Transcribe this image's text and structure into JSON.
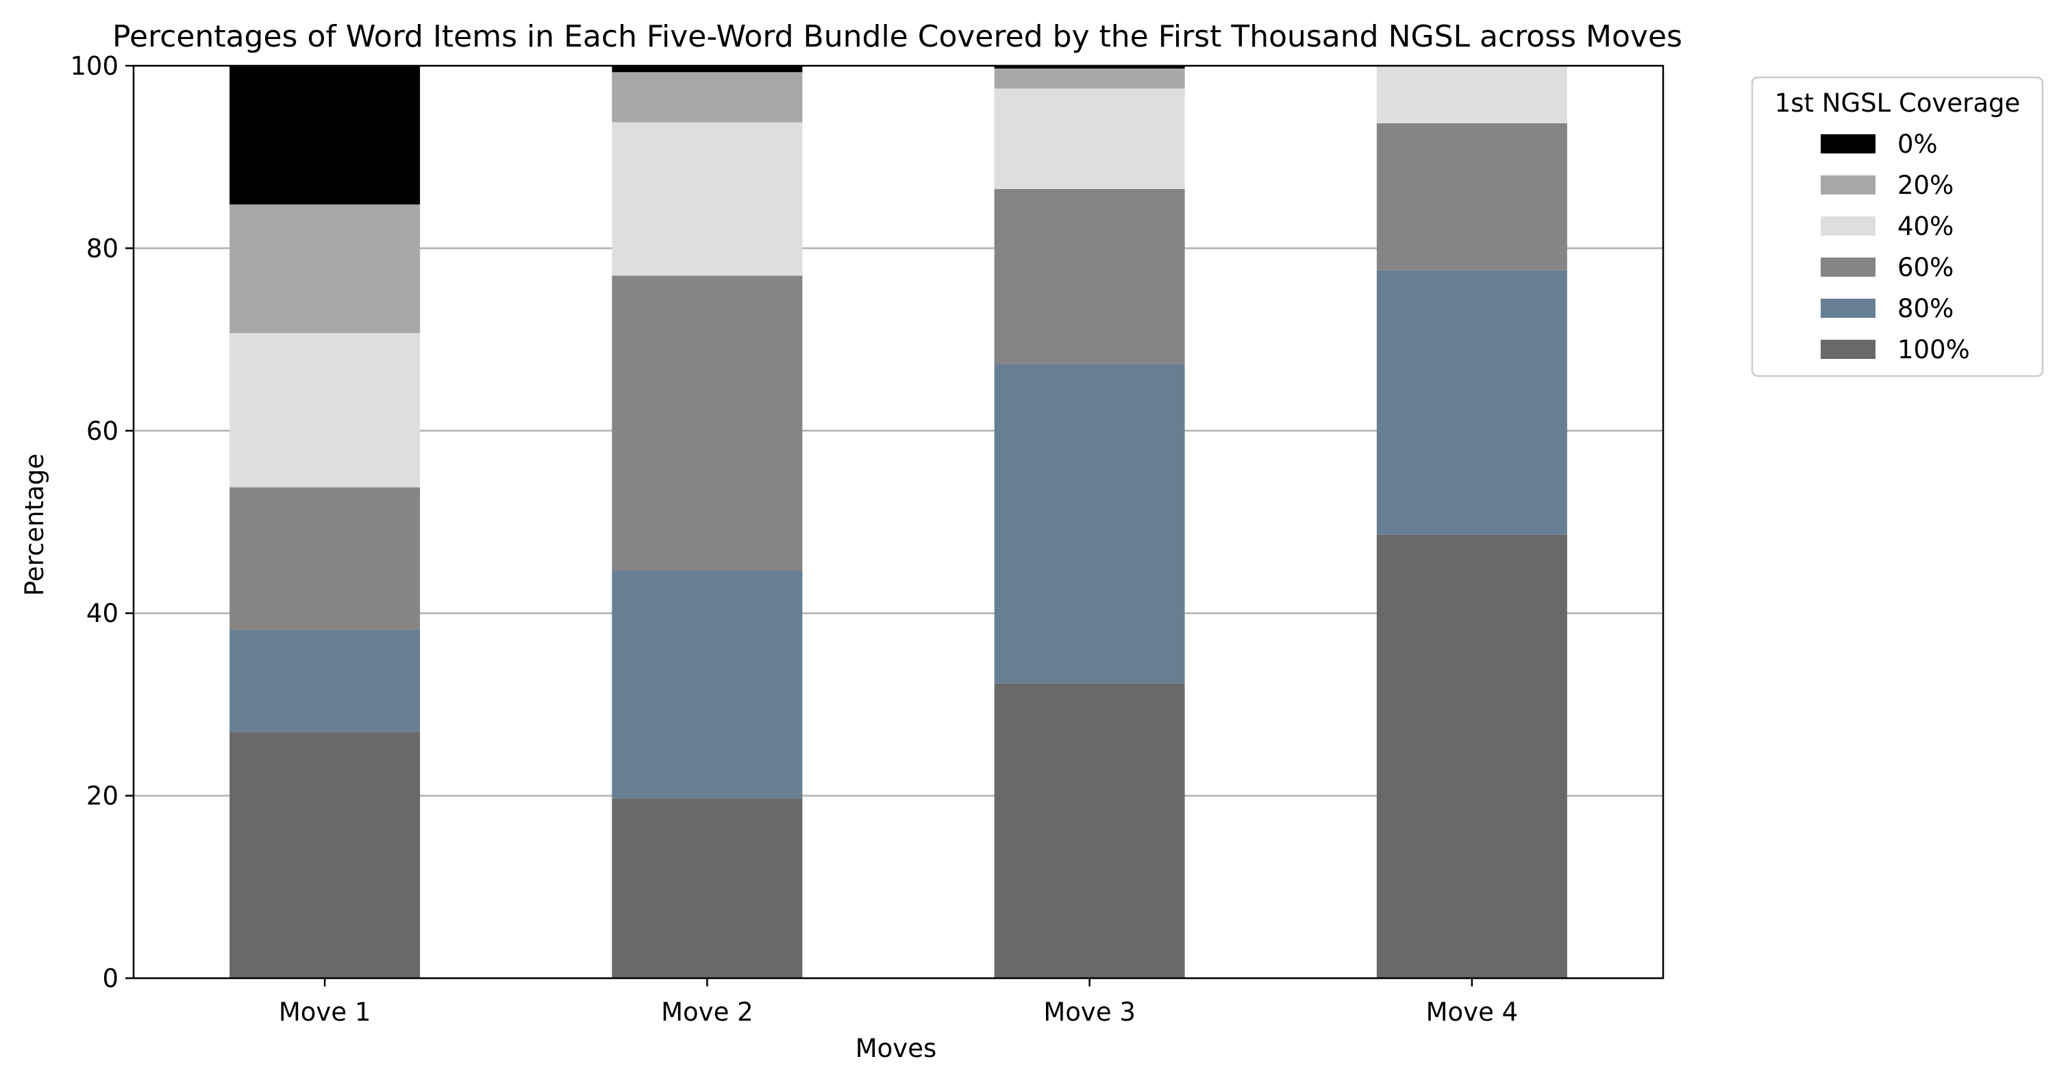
{
  "chart_data": {
    "type": "bar",
    "stacked": true,
    "title": "Percentages of Word Items in Each Five-Word Bundle Covered by the First Thousand NGSL across Moves",
    "xlabel": "Moves",
    "ylabel": "Percentage",
    "ylim": [
      0,
      100
    ],
    "yticks": [
      "0",
      "20",
      "40",
      "60",
      "80",
      "100"
    ],
    "grid": "horizontal",
    "legend_title": "1st NGSL Coverage",
    "legend_position": "outside-top-right",
    "categories": [
      "Move 1",
      "Move 2",
      "Move 3",
      "Move 4"
    ],
    "series": [
      {
        "name": "100%",
        "color": "#696969",
        "values": [
          27.0,
          19.7,
          32.3,
          48.6
        ]
      },
      {
        "name": "80%",
        "color": "#687f93",
        "values": [
          11.2,
          25.0,
          35.0,
          29.0
        ]
      },
      {
        "name": "60%",
        "color": "#858585",
        "values": [
          15.6,
          32.3,
          19.2,
          16.1
        ]
      },
      {
        "name": "40%",
        "color": "#dedede",
        "values": [
          16.9,
          16.8,
          11.0,
          6.3
        ]
      },
      {
        "name": "20%",
        "color": "#a8a8a8",
        "values": [
          14.1,
          5.5,
          2.2,
          0.0
        ]
      },
      {
        "name": "0%",
        "color": "#000000",
        "values": [
          15.2,
          0.7,
          0.3,
          0.0
        ]
      }
    ],
    "legend_order": [
      "0%",
      "20%",
      "40%",
      "60%",
      "80%",
      "100%"
    ]
  }
}
